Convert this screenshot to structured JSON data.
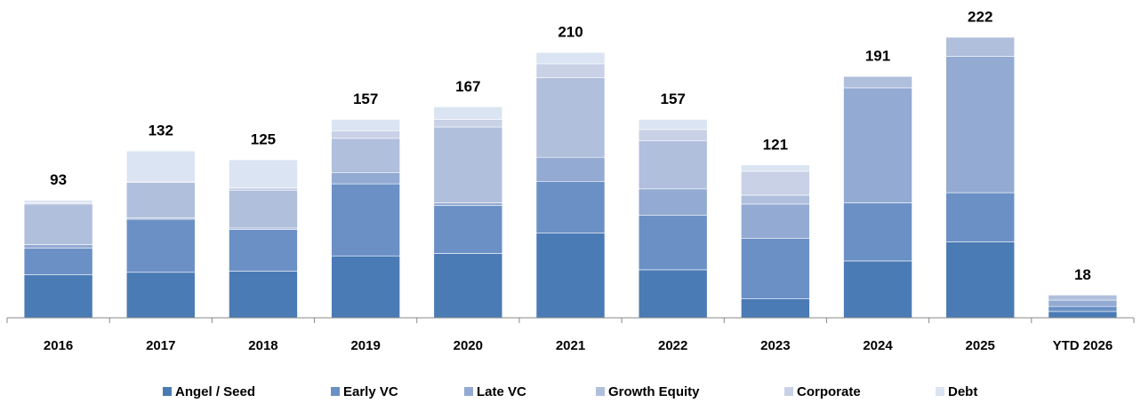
{
  "chart_data": {
    "type": "stacked_bar",
    "categories": [
      "2016",
      "2017",
      "2018",
      "2019",
      "2020",
      "2021",
      "2022",
      "2023",
      "2024",
      "2025",
      "YTD 2026"
    ],
    "totals": [
      93,
      132,
      125,
      157,
      167,
      210,
      157,
      121,
      191,
      222,
      18
    ],
    "series": [
      {
        "name": "Angel / Seed",
        "color": "#4a7bb5",
        "values": [
          34,
          36,
          37,
          49,
          51,
          67,
          38,
          15,
          45,
          60,
          5
        ]
      },
      {
        "name": "Early VC",
        "color": "#6b90c5",
        "values": [
          21,
          42,
          33,
          57,
          38,
          41,
          43,
          48,
          46,
          39,
          4
        ]
      },
      {
        "name": "Late VC",
        "color": "#93aad2",
        "values": [
          3,
          1,
          1,
          9,
          2,
          19,
          21,
          27,
          91,
          108,
          5
        ]
      },
      {
        "name": "Growth Equity",
        "color": "#b0bfdc",
        "values": [
          32,
          28,
          30,
          27,
          60,
          63,
          38,
          7,
          9,
          15,
          4
        ]
      },
      {
        "name": "Corporate",
        "color": "#c8d1e6",
        "values": [
          1,
          1,
          2,
          6,
          6,
          11,
          9,
          19,
          0,
          0,
          0
        ]
      },
      {
        "name": "Debt",
        "color": "#dbe4f2",
        "values": [
          2,
          24,
          22,
          9,
          10,
          9,
          8,
          5,
          0,
          0,
          0
        ]
      }
    ]
  }
}
